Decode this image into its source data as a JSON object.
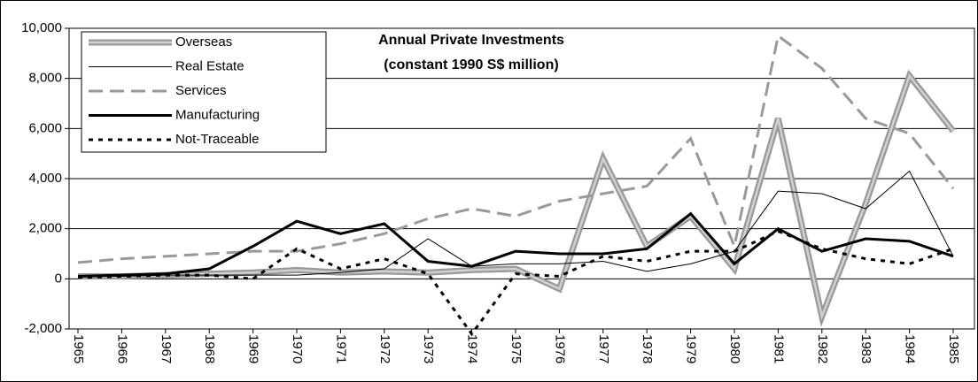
{
  "chart_data": {
    "type": "line",
    "title": "Annual Private Investments",
    "subtitle": "(constant 1990 S$ million)",
    "categories": [
      "1965",
      "1966",
      "1967",
      "1968",
      "1969",
      "1970",
      "1971",
      "1972",
      "1973",
      "1974",
      "1975",
      "1976",
      "1977",
      "1978",
      "1979",
      "1980",
      "1981",
      "1982",
      "1983",
      "1984",
      "1985"
    ],
    "series": [
      {
        "name": "Overseas",
        "color": "#999999",
        "dash": "solid-double",
        "values": [
          100,
          100,
          150,
          200,
          250,
          350,
          250,
          300,
          250,
          350,
          400,
          -400,
          4800,
          1300,
          2500,
          400,
          6400,
          -1500,
          3000,
          8100,
          5900
        ]
      },
      {
        "name": "Real Estate",
        "color": "#000000",
        "dash": "thin",
        "values": [
          100,
          100,
          150,
          150,
          150,
          150,
          250,
          400,
          1600,
          500,
          600,
          600,
          700,
          300,
          600,
          1100,
          3500,
          3400,
          2800,
          4300,
          900
        ]
      },
      {
        "name": "Services",
        "color": "#999999",
        "dash": "dashed",
        "values": [
          650,
          800,
          900,
          1000,
          1100,
          1100,
          1400,
          1800,
          2400,
          2800,
          2500,
          3100,
          3400,
          3700,
          5600,
          1300,
          9700,
          8400,
          6400,
          5800,
          3600
        ]
      },
      {
        "name": "Manufacturing",
        "color": "#000000",
        "dash": "thick",
        "values": [
          100,
          150,
          200,
          400,
          1300,
          2300,
          1800,
          2200,
          700,
          500,
          1100,
          1000,
          1000,
          1200,
          2600,
          600,
          2000,
          1100,
          1600,
          1500,
          900
        ]
      },
      {
        "name": "Not-Traceable",
        "color": "#000000",
        "dash": "dotted",
        "values": [
          50,
          100,
          150,
          150,
          0,
          1200,
          400,
          800,
          200,
          -2200,
          200,
          100,
          900,
          700,
          1100,
          1100,
          1900,
          1200,
          800,
          600,
          1200
        ]
      }
    ],
    "ylim": [
      -2000,
      10000
    ],
    "yticks": [
      {
        "value": -2000,
        "label": "-2,000"
      },
      0,
      {
        "value": 2000,
        "label": "2,000"
      },
      {
        "value": 4000,
        "label": "4,000"
      },
      {
        "value": 6000,
        "label": "6,000"
      },
      {
        "value": 8000,
        "label": "8,000"
      },
      {
        "value": 10000,
        "label": "10,000"
      }
    ],
    "grid": true,
    "legend": "upper-left"
  }
}
